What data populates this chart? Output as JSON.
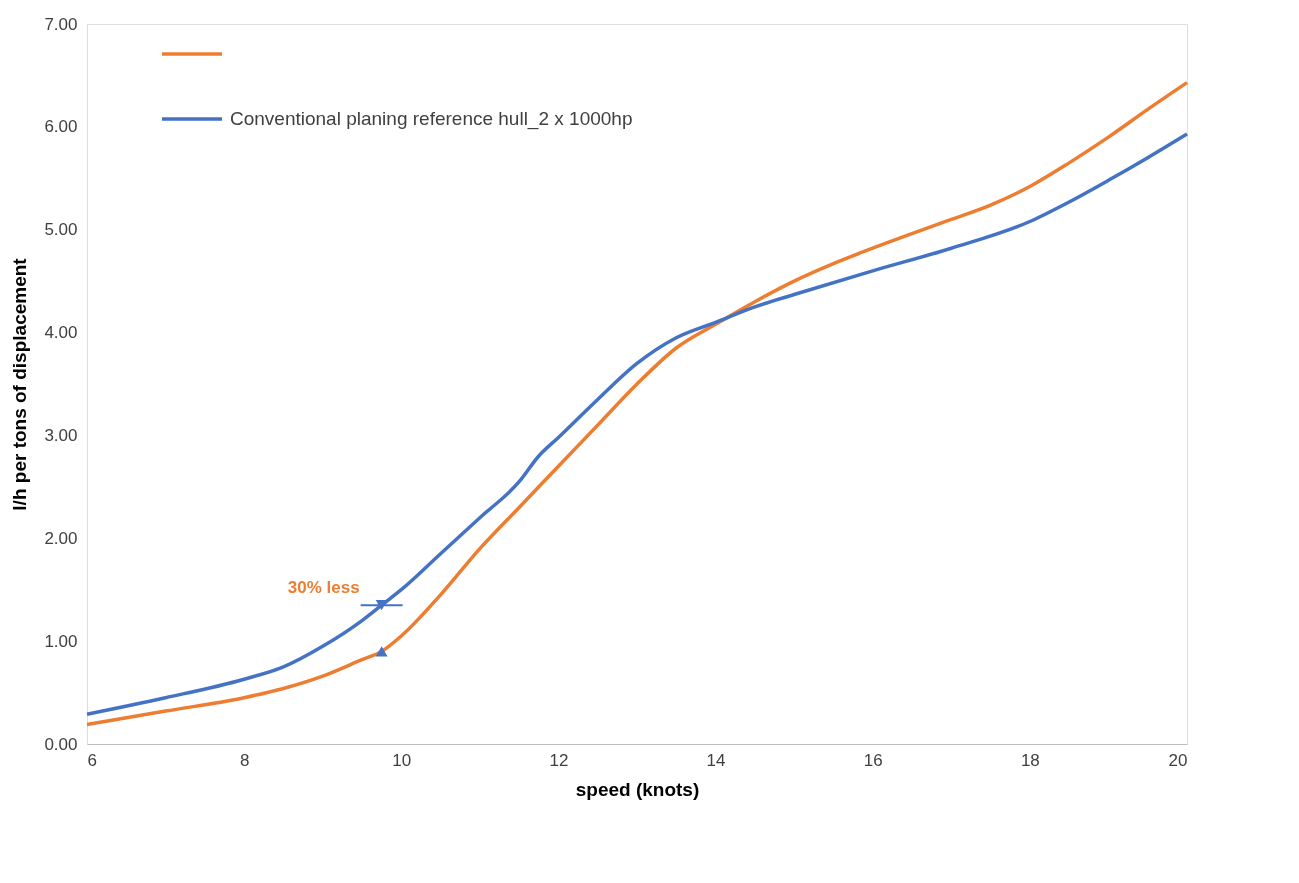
{
  "chart_data": {
    "type": "line",
    "xlabel": "speed (knots)",
    "ylabel": "l/h per tons of displacement",
    "xlim": [
      6,
      20
    ],
    "xticks": [
      6,
      8,
      10,
      12,
      14,
      16,
      18,
      20
    ],
    "ylim": [
      0,
      7
    ],
    "yticks": [
      {
        "value": 0,
        "label": "0.00"
      },
      {
        "value": 1,
        "label": "1.00"
      },
      {
        "value": 2,
        "label": "2.00"
      },
      {
        "value": 3,
        "label": "3.00"
      },
      {
        "value": 4,
        "label": "4.00"
      },
      {
        "value": 5,
        "label": "5.00"
      },
      {
        "value": 6,
        "label": "6.00"
      },
      {
        "value": 7,
        "label": "7.00"
      }
    ],
    "grid": false,
    "legend": "top left",
    "marker": "none",
    "line_style": "solid",
    "annotations": [
      {
        "text": "30% less",
        "x": 9.75,
        "y": 1.35
      }
    ],
    "series": [
      {
        "color": "#ed7d31",
        "x": [
          6,
          7,
          8,
          8.5,
          9,
          9.5,
          9.75,
          10,
          10.5,
          11,
          11.5,
          12,
          12.5,
          13,
          13.5,
          14,
          14.5,
          15,
          15.5,
          16,
          17,
          17.5,
          18,
          18.5,
          19,
          19.5,
          20
        ],
        "values": [
          0.19,
          0.32,
          0.45,
          0.54,
          0.66,
          0.82,
          0.9,
          1.05,
          1.45,
          1.9,
          2.3,
          2.7,
          3.1,
          3.5,
          3.85,
          4.08,
          4.3,
          4.5,
          4.67,
          4.82,
          5.1,
          5.24,
          5.42,
          5.65,
          5.9,
          6.17,
          6.43
        ]
      },
      {
        "name": "Conventional planing reference hull_2 x 1000hp",
        "color": "#4472c4",
        "x": [
          6,
          7,
          8,
          8.5,
          9,
          9.5,
          9.75,
          10,
          10.5,
          11,
          11.5,
          11.75,
          12,
          12.5,
          13,
          13.5,
          14,
          14.5,
          15,
          16,
          17,
          18,
          18.5,
          19,
          19.5,
          20
        ],
        "values": [
          0.29,
          0.45,
          0.63,
          0.75,
          0.95,
          1.2,
          1.35,
          1.5,
          1.85,
          2.2,
          2.55,
          2.8,
          2.98,
          3.35,
          3.7,
          3.95,
          4.1,
          4.25,
          4.37,
          4.6,
          4.82,
          5.08,
          5.27,
          5.48,
          5.7,
          5.93
        ]
      }
    ]
  }
}
